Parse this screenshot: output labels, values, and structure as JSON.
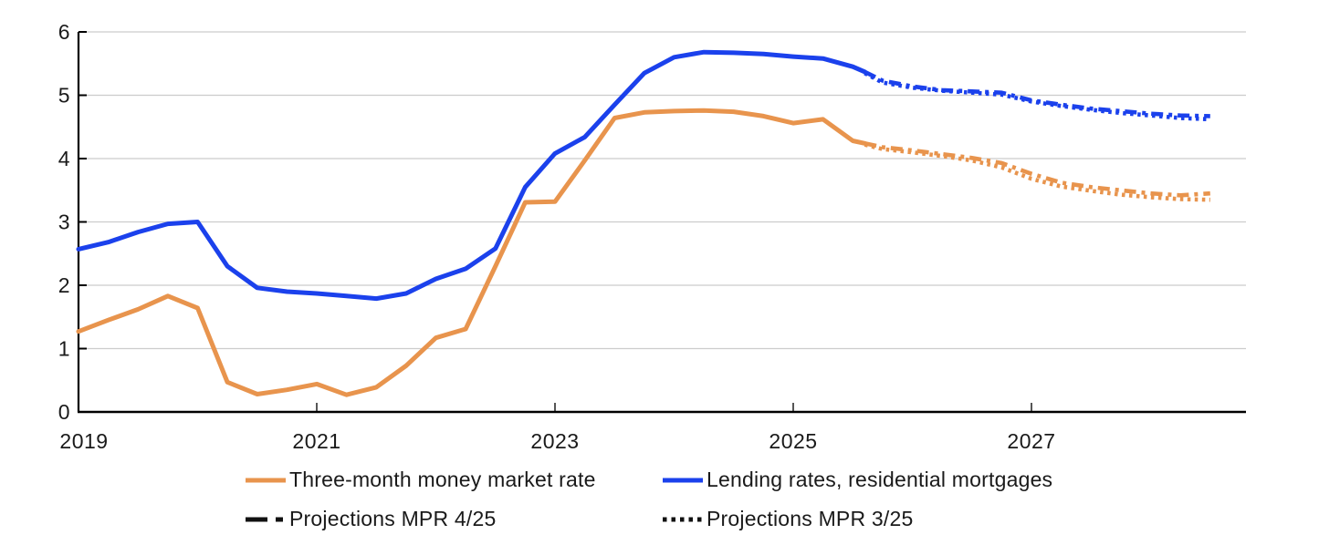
{
  "chart_data": {
    "type": "line",
    "title": "",
    "unit": "percent",
    "grid": "horizontal",
    "x_axis": {
      "range": [
        2019.0,
        2028.8
      ],
      "ticks": [
        2021,
        2023,
        2025,
        2027
      ],
      "labels": [
        "2019",
        "2021",
        "2023",
        "2025",
        "2027"
      ],
      "label_positions": [
        2019,
        2021,
        2023,
        2025,
        2027
      ]
    },
    "y_axis": {
      "range": [
        0,
        6
      ],
      "ticks": [
        0,
        1,
        2,
        3,
        4,
        5,
        6
      ]
    },
    "colors": {
      "money_market": "#E8944D",
      "mortgage": "#1B41EC",
      "projection_legend": "#111111",
      "gridline": "#CCCCCC",
      "axis": "#000000",
      "text": "#1A1A1A"
    },
    "series": [
      {
        "id": "money-market-projection-mpr-3-25",
        "name": "Three-month money market rate, projection MPR 3/25",
        "color": "#E8944D",
        "style": "dotted",
        "points": [
          [
            2025.6,
            4.22
          ],
          [
            2025.75,
            4.15
          ],
          [
            2026.0,
            4.1
          ],
          [
            2026.25,
            4.04
          ],
          [
            2026.5,
            3.97
          ],
          [
            2026.75,
            3.86
          ],
          [
            2027.0,
            3.68
          ],
          [
            2027.25,
            3.56
          ],
          [
            2027.5,
            3.49
          ],
          [
            2027.75,
            3.43
          ],
          [
            2028.0,
            3.39
          ],
          [
            2028.25,
            3.36
          ],
          [
            2028.5,
            3.35
          ]
        ]
      },
      {
        "id": "money-market-projection-mpr-4-25",
        "name": "Three-month money market rate, projection MPR 4/25",
        "color": "#E8944D",
        "style": "dash-dot",
        "points": [
          [
            2025.6,
            4.24
          ],
          [
            2025.75,
            4.18
          ],
          [
            2026.0,
            4.13
          ],
          [
            2026.25,
            4.07
          ],
          [
            2026.5,
            4.01
          ],
          [
            2026.75,
            3.93
          ],
          [
            2027.0,
            3.76
          ],
          [
            2027.25,
            3.62
          ],
          [
            2027.5,
            3.55
          ],
          [
            2027.75,
            3.5
          ],
          [
            2028.0,
            3.45
          ],
          [
            2028.25,
            3.42
          ],
          [
            2028.5,
            3.45
          ]
        ]
      },
      {
        "id": "mortgage-projection-mpr-3-25",
        "name": "Lending rates residential mortgages, projection MPR 3/25",
        "color": "#1B41EC",
        "style": "dotted",
        "points": [
          [
            2025.6,
            5.35
          ],
          [
            2025.75,
            5.2
          ],
          [
            2026.0,
            5.12
          ],
          [
            2026.25,
            5.07
          ],
          [
            2026.5,
            5.04
          ],
          [
            2026.75,
            5.01
          ],
          [
            2027.0,
            4.9
          ],
          [
            2027.25,
            4.83
          ],
          [
            2027.5,
            4.77
          ],
          [
            2027.75,
            4.72
          ],
          [
            2028.0,
            4.68
          ],
          [
            2028.25,
            4.64
          ],
          [
            2028.5,
            4.62
          ]
        ]
      },
      {
        "id": "mortgage-projection-mpr-4-25",
        "name": "Lending rates residential mortgages, projection MPR 4/25",
        "color": "#1B41EC",
        "style": "dash-dot",
        "points": [
          [
            2025.6,
            5.37
          ],
          [
            2025.75,
            5.23
          ],
          [
            2026.0,
            5.14
          ],
          [
            2026.25,
            5.08
          ],
          [
            2026.5,
            5.06
          ],
          [
            2026.75,
            5.04
          ],
          [
            2027.0,
            4.92
          ],
          [
            2027.25,
            4.85
          ],
          [
            2027.5,
            4.79
          ],
          [
            2027.75,
            4.75
          ],
          [
            2028.0,
            4.71
          ],
          [
            2028.25,
            4.68
          ],
          [
            2028.5,
            4.67
          ]
        ]
      },
      {
        "id": "money-market-rate",
        "name": "Three-month money market rate",
        "color": "#E8944D",
        "style": "solid",
        "points": [
          [
            2019.0,
            1.27
          ],
          [
            2019.25,
            1.45
          ],
          [
            2019.5,
            1.62
          ],
          [
            2019.75,
            1.83
          ],
          [
            2020.0,
            1.64
          ],
          [
            2020.25,
            0.47
          ],
          [
            2020.5,
            0.28
          ],
          [
            2020.75,
            0.35
          ],
          [
            2021.0,
            0.44
          ],
          [
            2021.25,
            0.27
          ],
          [
            2021.5,
            0.39
          ],
          [
            2021.75,
            0.73
          ],
          [
            2022.0,
            1.17
          ],
          [
            2022.25,
            1.31
          ],
          [
            2022.5,
            2.3
          ],
          [
            2022.75,
            3.31
          ],
          [
            2023.0,
            3.32
          ],
          [
            2023.25,
            3.97
          ],
          [
            2023.5,
            4.64
          ],
          [
            2023.75,
            4.73
          ],
          [
            2024.0,
            4.75
          ],
          [
            2024.25,
            4.76
          ],
          [
            2024.5,
            4.74
          ],
          [
            2024.75,
            4.67
          ],
          [
            2025.0,
            4.56
          ],
          [
            2025.25,
            4.62
          ],
          [
            2025.5,
            4.28
          ],
          [
            2025.6,
            4.24
          ]
        ]
      },
      {
        "id": "mortgage-lending-rate",
        "name": "Lending rates, residential mortgages",
        "color": "#1B41EC",
        "style": "solid",
        "points": [
          [
            2019.0,
            2.57
          ],
          [
            2019.25,
            2.68
          ],
          [
            2019.5,
            2.84
          ],
          [
            2019.75,
            2.97
          ],
          [
            2020.0,
            3.0
          ],
          [
            2020.25,
            2.3
          ],
          [
            2020.5,
            1.96
          ],
          [
            2020.75,
            1.9
          ],
          [
            2021.0,
            1.87
          ],
          [
            2021.25,
            1.83
          ],
          [
            2021.5,
            1.79
          ],
          [
            2021.75,
            1.87
          ],
          [
            2022.0,
            2.1
          ],
          [
            2022.25,
            2.26
          ],
          [
            2022.5,
            2.58
          ],
          [
            2022.75,
            3.55
          ],
          [
            2023.0,
            4.08
          ],
          [
            2023.25,
            4.34
          ],
          [
            2023.5,
            4.85
          ],
          [
            2023.75,
            5.35
          ],
          [
            2024.0,
            5.6
          ],
          [
            2024.25,
            5.68
          ],
          [
            2024.5,
            5.67
          ],
          [
            2024.75,
            5.65
          ],
          [
            2025.0,
            5.61
          ],
          [
            2025.25,
            5.58
          ],
          [
            2025.5,
            5.45
          ],
          [
            2025.6,
            5.37
          ]
        ]
      }
    ],
    "legend": {
      "position": "bottom",
      "rows": [
        [
          {
            "label": "Three-month money market rate",
            "swatch": "solid",
            "color": "#E8944D"
          },
          {
            "label": "Lending rates, residential mortgages",
            "swatch": "solid",
            "color": "#1B41EC"
          }
        ],
        [
          {
            "label": "Projections MPR 4/25",
            "swatch": "dash-dot",
            "color": "#111111"
          },
          {
            "label": "Projections MPR 3/25",
            "swatch": "dotted",
            "color": "#111111"
          }
        ]
      ]
    }
  }
}
